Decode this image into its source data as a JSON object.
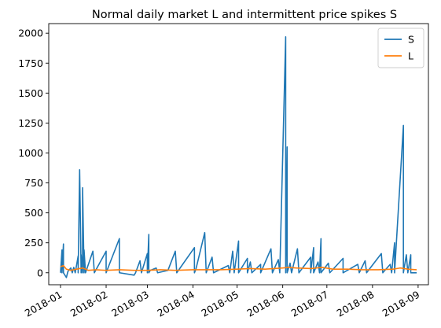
{
  "chart_data": {
    "type": "line",
    "title": "Normal daily market L and intermittent price spikes S",
    "xlabel": "",
    "ylabel": "",
    "x_range": [
      "2017-12-24",
      "2018-09-08"
    ],
    "ylim": [
      -100,
      2080
    ],
    "grid": false,
    "legend_position": "top-right",
    "x_ticks": [
      "2018-01",
      "2018-02",
      "2018-03",
      "2018-04",
      "2018-05",
      "2018-06",
      "2018-07",
      "2018-08",
      "2018-09"
    ],
    "y_ticks": [
      0,
      250,
      500,
      750,
      1000,
      1250,
      1500,
      1750,
      2000
    ],
    "series": [
      {
        "name": "S",
        "color": "#1f77b4",
        "points": [
          [
            "2018-01-01",
            0
          ],
          [
            "2018-01-02",
            190
          ],
          [
            "2018-01-02",
            0
          ],
          [
            "2018-01-03",
            240
          ],
          [
            "2018-01-03",
            0
          ],
          [
            "2018-01-05",
            -40
          ],
          [
            "2018-01-06",
            10
          ],
          [
            "2018-01-08",
            40
          ],
          [
            "2018-01-09",
            0
          ],
          [
            "2018-01-10",
            45
          ],
          [
            "2018-01-11",
            0
          ],
          [
            "2018-01-13",
            140
          ],
          [
            "2018-01-13",
            0
          ],
          [
            "2018-01-14",
            860
          ],
          [
            "2018-01-15",
            0
          ],
          [
            "2018-01-15",
            150
          ],
          [
            "2018-01-16",
            0
          ],
          [
            "2018-01-16",
            710
          ],
          [
            "2018-01-17",
            0
          ],
          [
            "2018-01-17",
            190
          ],
          [
            "2018-01-18",
            0
          ],
          [
            "2018-01-23",
            180
          ],
          [
            "2018-01-24",
            0
          ],
          [
            "2018-02-01",
            180
          ],
          [
            "2018-02-01",
            0
          ],
          [
            "2018-02-10",
            285
          ],
          [
            "2018-02-10",
            0
          ],
          [
            "2018-02-20",
            -20
          ],
          [
            "2018-02-21",
            0
          ],
          [
            "2018-02-24",
            100
          ],
          [
            "2018-02-25",
            0
          ],
          [
            "2018-03-01",
            160
          ],
          [
            "2018-03-01",
            0
          ],
          [
            "2018-03-02",
            320
          ],
          [
            "2018-03-02",
            0
          ],
          [
            "2018-03-03",
            20
          ],
          [
            "2018-03-07",
            40
          ],
          [
            "2018-03-08",
            0
          ],
          [
            "2018-03-15",
            20
          ],
          [
            "2018-03-20",
            180
          ],
          [
            "2018-03-21",
            0
          ],
          [
            "2018-04-02",
            210
          ],
          [
            "2018-04-02",
            0
          ],
          [
            "2018-04-03",
            30
          ],
          [
            "2018-04-09",
            335
          ],
          [
            "2018-04-10",
            0
          ],
          [
            "2018-04-14",
            130
          ],
          [
            "2018-04-15",
            0
          ],
          [
            "2018-04-25",
            60
          ],
          [
            "2018-04-26",
            0
          ],
          [
            "2018-04-28",
            180
          ],
          [
            "2018-04-29",
            0
          ],
          [
            "2018-05-02",
            265
          ],
          [
            "2018-05-02",
            0
          ],
          [
            "2018-05-08",
            120
          ],
          [
            "2018-05-08",
            0
          ],
          [
            "2018-05-10",
            90
          ],
          [
            "2018-05-11",
            0
          ],
          [
            "2018-05-17",
            70
          ],
          [
            "2018-05-17",
            0
          ],
          [
            "2018-05-24",
            200
          ],
          [
            "2018-05-25",
            0
          ],
          [
            "2018-05-29",
            110
          ],
          [
            "2018-05-30",
            0
          ],
          [
            "2018-06-03",
            1970
          ],
          [
            "2018-06-03",
            0
          ],
          [
            "2018-06-04",
            1050
          ],
          [
            "2018-06-04",
            0
          ],
          [
            "2018-06-06",
            80
          ],
          [
            "2018-06-07",
            0
          ],
          [
            "2018-06-11",
            200
          ],
          [
            "2018-06-12",
            0
          ],
          [
            "2018-06-20",
            130
          ],
          [
            "2018-06-20",
            0
          ],
          [
            "2018-06-22",
            210
          ],
          [
            "2018-06-22",
            0
          ],
          [
            "2018-06-25",
            90
          ],
          [
            "2018-06-26",
            0
          ],
          [
            "2018-06-27",
            285
          ],
          [
            "2018-06-27",
            0
          ],
          [
            "2018-07-02",
            80
          ],
          [
            "2018-07-03",
            0
          ],
          [
            "2018-07-12",
            120
          ],
          [
            "2018-07-12",
            0
          ],
          [
            "2018-07-22",
            70
          ],
          [
            "2018-07-23",
            0
          ],
          [
            "2018-07-27",
            100
          ],
          [
            "2018-07-28",
            0
          ],
          [
            "2018-08-07",
            160
          ],
          [
            "2018-08-08",
            0
          ],
          [
            "2018-08-13",
            70
          ],
          [
            "2018-08-14",
            0
          ],
          [
            "2018-08-16",
            250
          ],
          [
            "2018-08-16",
            0
          ],
          [
            "2018-08-22",
            1230
          ],
          [
            "2018-08-22",
            0
          ],
          [
            "2018-08-24",
            150
          ],
          [
            "2018-08-25",
            0
          ],
          [
            "2018-08-27",
            150
          ],
          [
            "2018-08-27",
            0
          ],
          [
            "2018-08-31",
            0
          ]
        ]
      },
      {
        "name": "L",
        "color": "#ff7f0e",
        "points": [
          [
            "2018-01-01",
            50
          ],
          [
            "2018-01-03",
            60
          ],
          [
            "2018-01-05",
            30
          ],
          [
            "2018-01-08",
            20
          ],
          [
            "2018-01-12",
            30
          ],
          [
            "2018-01-16",
            40
          ],
          [
            "2018-01-20",
            20
          ],
          [
            "2018-01-25",
            25
          ],
          [
            "2018-02-01",
            20
          ],
          [
            "2018-02-10",
            25
          ],
          [
            "2018-02-20",
            20
          ],
          [
            "2018-03-01",
            20
          ],
          [
            "2018-03-10",
            25
          ],
          [
            "2018-03-20",
            20
          ],
          [
            "2018-04-01",
            25
          ],
          [
            "2018-04-10",
            25
          ],
          [
            "2018-04-20",
            25
          ],
          [
            "2018-05-01",
            30
          ],
          [
            "2018-05-10",
            35
          ],
          [
            "2018-05-20",
            30
          ],
          [
            "2018-06-01",
            40
          ],
          [
            "2018-06-05",
            45
          ],
          [
            "2018-06-10",
            40
          ],
          [
            "2018-06-20",
            35
          ],
          [
            "2018-06-28",
            45
          ],
          [
            "2018-07-05",
            30
          ],
          [
            "2018-07-15",
            30
          ],
          [
            "2018-07-25",
            25
          ],
          [
            "2018-08-05",
            25
          ],
          [
            "2018-08-15",
            30
          ],
          [
            "2018-08-20",
            40
          ],
          [
            "2018-08-25",
            30
          ],
          [
            "2018-08-31",
            25
          ]
        ]
      }
    ]
  }
}
